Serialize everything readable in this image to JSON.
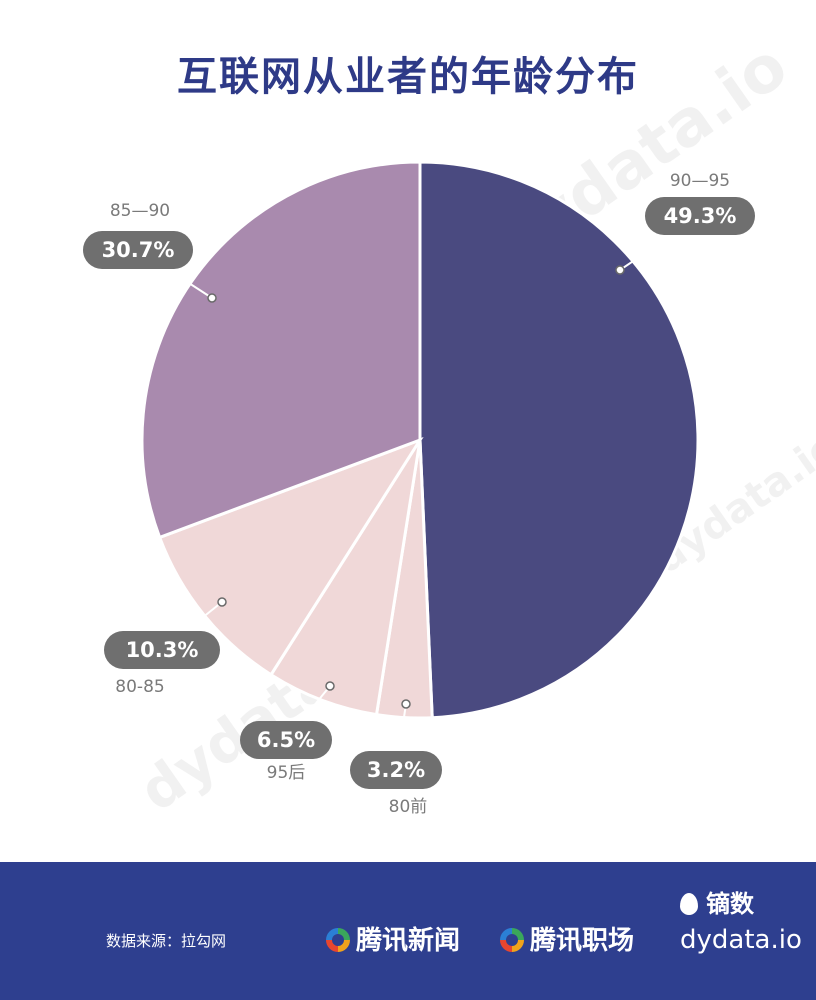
{
  "title": "互联网从业者的年龄分布",
  "chart_data": {
    "type": "pie",
    "title": "互联网从业者的年龄分布",
    "slices": [
      {
        "label": "90—95",
        "value": 49.3,
        "display": "49.3%",
        "color": "#4a4a80"
      },
      {
        "label": "80前",
        "value": 3.2,
        "display": "3.2%",
        "color": "#f0d8d8"
      },
      {
        "label": "95后",
        "value": 6.5,
        "display": "6.5%",
        "color": "#f0d8d8"
      },
      {
        "label": "80-85",
        "value": 10.3,
        "display": "10.3%",
        "color": "#f0d8d8"
      },
      {
        "label": "85—90",
        "value": 30.7,
        "display": "30.7%",
        "color": "#a98aae"
      }
    ]
  },
  "footer": {
    "source": "数据来源：拉勾网",
    "brand1": "腾讯新闻",
    "brand2": "腾讯职场",
    "logo_text": "镝数",
    "logo_url": "dydata.io"
  },
  "watermark": "dydata.io"
}
